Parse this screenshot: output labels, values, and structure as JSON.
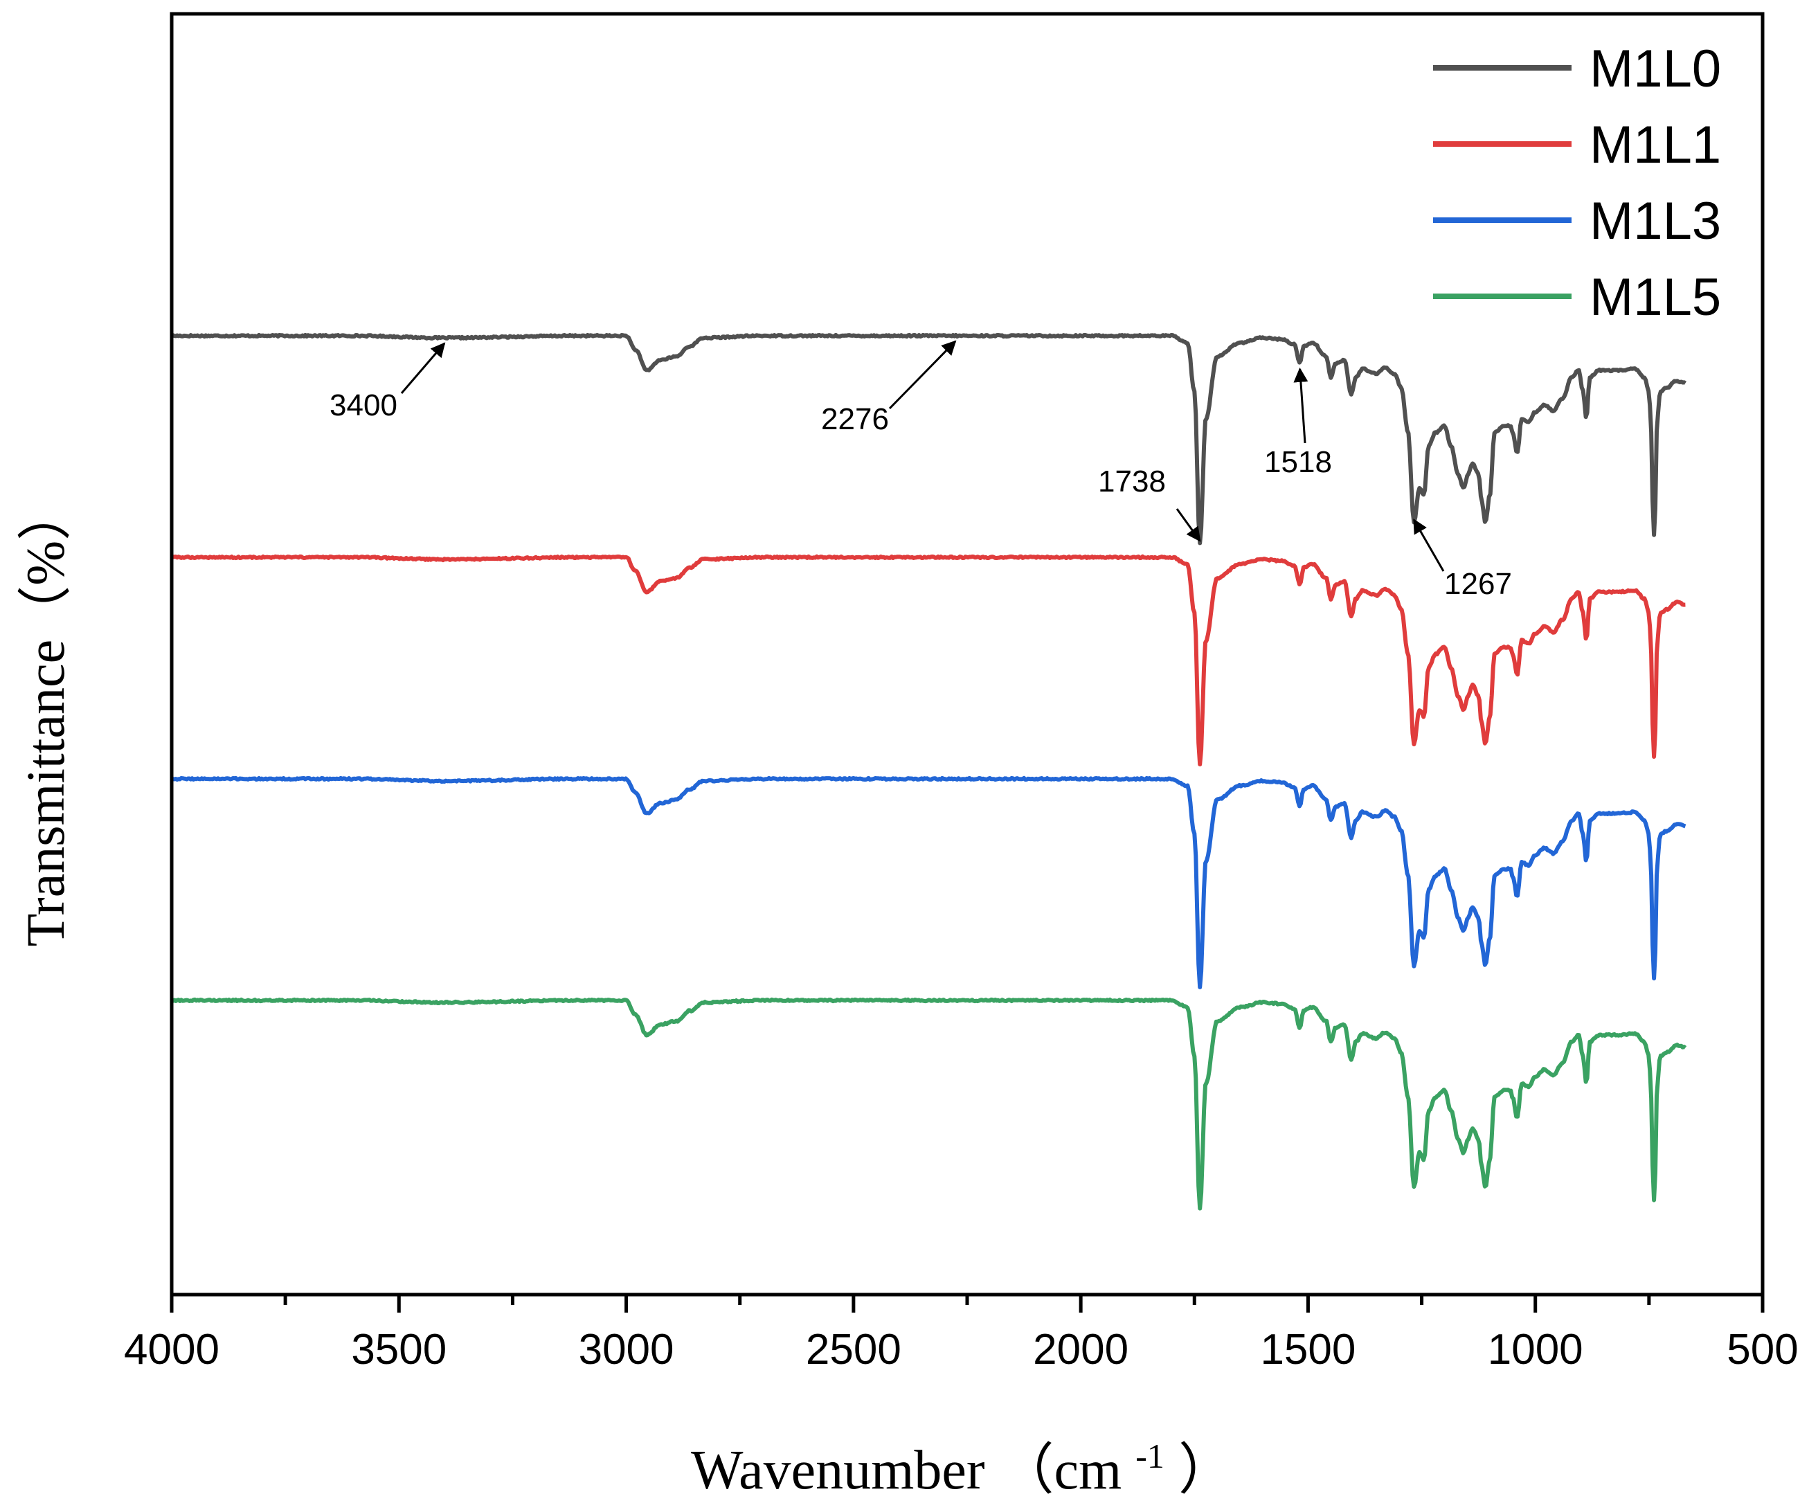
{
  "chart_data": {
    "type": "line",
    "title": "",
    "xlabel": "Wavenumber",
    "xlabel_unit_open": "（cm",
    "xlabel_unit_sup": "-1",
    "xlabel_unit_close": "）",
    "ylabel": "Transmittance（%）",
    "xlim": [
      4000,
      500
    ],
    "x_ticks": [
      4000,
      3500,
      3000,
      2500,
      2000,
      1500,
      1000,
      500
    ],
    "y_ticks_visible": false,
    "grid": false,
    "legend_position": "top-right",
    "colors": [
      "#505050",
      "#e03c3c",
      "#2266d6",
      "#3aa262"
    ],
    "series_offsets_percent": [
      0,
      -32,
      -64,
      -96
    ],
    "spectrum_template": [
      [
        4000,
        0
      ],
      [
        3600,
        0
      ],
      [
        3400,
        -0.3
      ],
      [
        3100,
        0
      ],
      [
        3000,
        0
      ],
      [
        2980,
        -2
      ],
      [
        2955,
        -5
      ],
      [
        2925,
        -3.5
      ],
      [
        2890,
        -3
      ],
      [
        2860,
        -1.5
      ],
      [
        2830,
        -0.3
      ],
      [
        2700,
        0
      ],
      [
        2500,
        0
      ],
      [
        2276,
        0
      ],
      [
        2000,
        0
      ],
      [
        1800,
        0
      ],
      [
        1765,
        -1
      ],
      [
        1750,
        -8
      ],
      [
        1738,
        -30
      ],
      [
        1725,
        -12
      ],
      [
        1700,
        -3
      ],
      [
        1650,
        -1
      ],
      [
        1600,
        -0.3
      ],
      [
        1560,
        -0.5
      ],
      [
        1530,
        -1.2
      ],
      [
        1518,
        -4
      ],
      [
        1510,
        -1.5
      ],
      [
        1490,
        -1
      ],
      [
        1460,
        -3
      ],
      [
        1450,
        -6
      ],
      [
        1440,
        -4
      ],
      [
        1420,
        -3.5
      ],
      [
        1405,
        -8.5
      ],
      [
        1395,
        -6
      ],
      [
        1380,
        -4.8
      ],
      [
        1350,
        -5.5
      ],
      [
        1330,
        -4.6
      ],
      [
        1310,
        -5.5
      ],
      [
        1295,
        -7.5
      ],
      [
        1280,
        -14
      ],
      [
        1267,
        -27
      ],
      [
        1255,
        -22
      ],
      [
        1245,
        -23
      ],
      [
        1235,
        -16
      ],
      [
        1220,
        -14
      ],
      [
        1200,
        -13
      ],
      [
        1185,
        -16
      ],
      [
        1170,
        -20
      ],
      [
        1158,
        -22
      ],
      [
        1148,
        -20
      ],
      [
        1138,
        -18.5
      ],
      [
        1125,
        -20
      ],
      [
        1118,
        -24
      ],
      [
        1110,
        -27
      ],
      [
        1100,
        -23
      ],
      [
        1090,
        -14
      ],
      [
        1070,
        -13
      ],
      [
        1055,
        -13
      ],
      [
        1050,
        -14
      ],
      [
        1040,
        -17
      ],
      [
        1030,
        -12
      ],
      [
        1015,
        -12.5
      ],
      [
        1000,
        -11
      ],
      [
        980,
        -10
      ],
      [
        960,
        -10.8
      ],
      [
        940,
        -9
      ],
      [
        920,
        -6
      ],
      [
        905,
        -5
      ],
      [
        895,
        -8
      ],
      [
        888,
        -12
      ],
      [
        880,
        -6
      ],
      [
        860,
        -5
      ],
      [
        820,
        -5
      ],
      [
        780,
        -4.8
      ],
      [
        760,
        -6
      ],
      [
        750,
        -8
      ],
      [
        745,
        -14
      ],
      [
        742,
        -24
      ],
      [
        740,
        -29.5
      ],
      [
        736,
        -25
      ],
      [
        732,
        -12
      ],
      [
        725,
        -8
      ],
      [
        710,
        -7.5
      ],
      [
        690,
        -6.5
      ],
      [
        670,
        -6.8
      ]
    ],
    "series": [
      {
        "name": "M1L0",
        "color": "#505050",
        "offset": 0
      },
      {
        "name": "M1L1",
        "color": "#e03c3c",
        "offset": -32
      },
      {
        "name": "M1L3",
        "color": "#2266d6",
        "offset": -64
      },
      {
        "name": "M1L5",
        "color": "#3aa262",
        "offset": -96
      }
    ],
    "annotations": [
      {
        "label": "3400",
        "target_x": 3400,
        "series": "M1L0"
      },
      {
        "label": "2276",
        "target_x": 2276,
        "series": "M1L0"
      },
      {
        "label": "1738",
        "target_x": 1738,
        "series": "M1L0"
      },
      {
        "label": "1518",
        "target_x": 1518,
        "series": "M1L0"
      },
      {
        "label": "1267",
        "target_x": 1267,
        "series": "M1L0"
      }
    ]
  }
}
